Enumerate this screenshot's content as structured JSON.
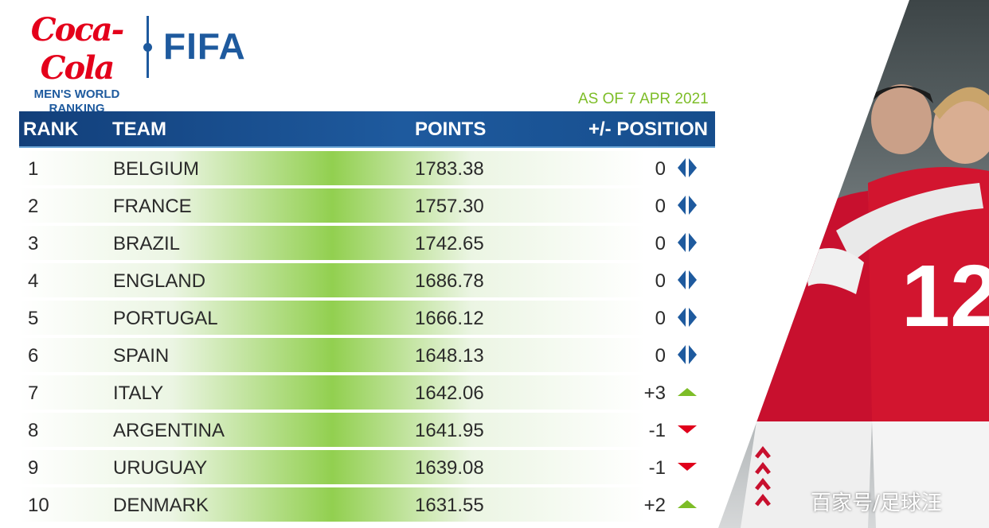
{
  "header": {
    "sponsor": "Coca-Cola",
    "title_line1": "MEN'S WORLD",
    "title_line2": "RANKING",
    "organization": "FIFA",
    "as_of": "AS OF 7 APR 2021"
  },
  "columns": {
    "rank": "RANK",
    "team": "TEAM",
    "points": "POINTS",
    "position": "+/- POSITION"
  },
  "rows": [
    {
      "rank": "1",
      "team": "BELGIUM",
      "points": "1783.38",
      "change": "0",
      "trend": "same"
    },
    {
      "rank": "2",
      "team": "FRANCE",
      "points": "1757.30",
      "change": "0",
      "trend": "same"
    },
    {
      "rank": "3",
      "team": "BRAZIL",
      "points": "1742.65",
      "change": "0",
      "trend": "same"
    },
    {
      "rank": "4",
      "team": "ENGLAND",
      "points": "1686.78",
      "change": "0",
      "trend": "same"
    },
    {
      "rank": "5",
      "team": "PORTUGAL",
      "points": "1666.12",
      "change": "0",
      "trend": "same"
    },
    {
      "rank": "6",
      "team": "SPAIN",
      "points": "1648.13",
      "change": "0",
      "trend": "same"
    },
    {
      "rank": "7",
      "team": "ITALY",
      "points": "1642.06",
      "change": "+3",
      "trend": "up"
    },
    {
      "rank": "8",
      "team": "ARGENTINA",
      "points": "1641.95",
      "change": "-1",
      "trend": "down"
    },
    {
      "rank": "9",
      "team": "URUGUAY",
      "points": "1639.08",
      "change": "-1",
      "trend": "down"
    },
    {
      "rank": "10",
      "team": "DENMARK",
      "points": "1631.55",
      "change": "+2",
      "trend": "up"
    }
  ],
  "colors": {
    "header_blue": "#1e5a9e",
    "accent_green": "#7dbd27",
    "up": "#7dbd27",
    "down": "#e0001b",
    "same": "#1e5a9e",
    "coke_red": "#e4001b"
  },
  "icons": {
    "same": "left-right-arrows-icon",
    "up": "triangle-up-icon",
    "down": "triangle-down-icon"
  },
  "photo": {
    "subject": "Denmark players celebrating",
    "jersey_number": "12"
  },
  "watermark": "百家号/足球汪"
}
